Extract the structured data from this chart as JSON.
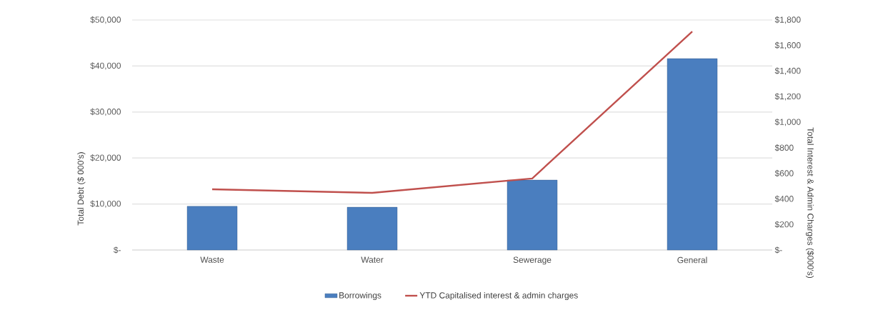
{
  "chart_data": {
    "type": "bar",
    "categories": [
      "Waste",
      "Water",
      "Sewerage",
      "General"
    ],
    "series": [
      {
        "name": "Borrowings",
        "color": "#4a7ebf",
        "values": [
          9500,
          9300,
          15200,
          41600
        ]
      },
      {
        "name": "YTD Capitalised interest & admin charges",
        "type": "line",
        "axis": "y2",
        "color": "#c0504d",
        "values": [
          475,
          447,
          560,
          1710
        ]
      }
    ],
    "ylabel": "Total Debt ($ 000's)",
    "y2label": "Total Interest & Admin Charges ($000's)",
    "ylim": [
      0,
      50000
    ],
    "yticks": [
      {
        "value": 0,
        "label": "$-"
      },
      {
        "value": 10000,
        "label": "$10,000"
      },
      {
        "value": 20000,
        "label": "$20,000"
      },
      {
        "value": 30000,
        "label": "$30,000"
      },
      {
        "value": 40000,
        "label": "$40,000"
      },
      {
        "value": 50000,
        "label": "$50,000"
      }
    ],
    "y2lim": [
      0,
      1800
    ],
    "y2ticks": [
      {
        "value": 0,
        "label": "$-"
      },
      {
        "value": 200,
        "label": "$200"
      },
      {
        "value": 400,
        "label": "$400"
      },
      {
        "value": 600,
        "label": "$600"
      },
      {
        "value": 800,
        "label": "$800"
      },
      {
        "value": 1000,
        "label": "$1,000"
      },
      {
        "value": 1200,
        "label": "$1,200"
      },
      {
        "value": 1400,
        "label": "$1,400"
      },
      {
        "value": 1600,
        "label": "$1,600"
      },
      {
        "value": 1800,
        "label": "$1,800"
      }
    ],
    "grid": "y",
    "legend": "bottom"
  }
}
